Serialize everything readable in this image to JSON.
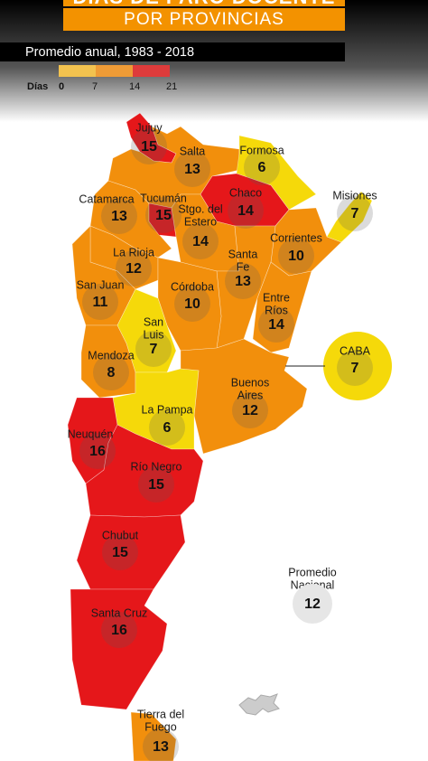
{
  "header": {
    "title": "DÍAS DE PARO DOCENTE",
    "subtitle": "POR PROVINCIAS",
    "period": "Promedio anual, 1983 - 2018"
  },
  "legend": {
    "label": "Días",
    "ticks": [
      0,
      7,
      14,
      21
    ],
    "colors": [
      "#f2c24f",
      "#ee9b36",
      "#dd3b3b"
    ]
  },
  "provinces": [
    {
      "name": [
        "Jujuy"
      ],
      "value": 15,
      "color": "#e5171a"
    },
    {
      "name": [
        "Salta"
      ],
      "value": 13,
      "color": "#f28f0c"
    },
    {
      "name": [
        "Formosa"
      ],
      "value": 6,
      "color": "#f5d90a"
    },
    {
      "name": [
        "Chaco"
      ],
      "value": 14,
      "color": "#e5171a"
    },
    {
      "name": [
        "Misiones"
      ],
      "value": 7,
      "color": "#f5d90a"
    },
    {
      "name": [
        "Catamarca"
      ],
      "value": 13,
      "color": "#f28f0c"
    },
    {
      "name": [
        "Tucumán"
      ],
      "value": 15,
      "color": "#e5171a"
    },
    {
      "name": [
        "Stgo. del",
        "Estero"
      ],
      "value": 14,
      "color": "#f28f0c"
    },
    {
      "name": [
        "Corrientes"
      ],
      "value": 10,
      "color": "#f28f0c"
    },
    {
      "name": [
        "La Rioja"
      ],
      "value": 12,
      "color": "#f28f0c"
    },
    {
      "name": [
        "Santa",
        "Fe"
      ],
      "value": 13,
      "color": "#f28f0c"
    },
    {
      "name": [
        "San Juan"
      ],
      "value": 11,
      "color": "#f28f0c"
    },
    {
      "name": [
        "Córdoba"
      ],
      "value": 10,
      "color": "#f28f0c"
    },
    {
      "name": [
        "Entre",
        "Ríos"
      ],
      "value": 14,
      "color": "#f28f0c"
    },
    {
      "name": [
        "San",
        "Luis"
      ],
      "value": 7,
      "color": "#f5d90a"
    },
    {
      "name": [
        "Mendoza"
      ],
      "value": 8,
      "color": "#f28f0c"
    },
    {
      "name": [
        "CABA"
      ],
      "value": 7,
      "color": "#f5d90a"
    },
    {
      "name": [
        "Buenos",
        "Aires"
      ],
      "value": 12,
      "color": "#f28f0c"
    },
    {
      "name": [
        "La Pampa"
      ],
      "value": 6,
      "color": "#f5d90a"
    },
    {
      "name": [
        "Neuquén"
      ],
      "value": 16,
      "color": "#e5171a"
    },
    {
      "name": [
        "Río Negro"
      ],
      "value": 15,
      "color": "#e5171a"
    },
    {
      "name": [
        "Chubut"
      ],
      "value": 15,
      "color": "#e5171a"
    },
    {
      "name": [
        "Santa Cruz"
      ],
      "value": 16,
      "color": "#e5171a"
    },
    {
      "name": [
        "Tierra del",
        "Fuego"
      ],
      "value": 13,
      "color": "#f28f0c"
    }
  ],
  "national_average": {
    "label": [
      "Promedio",
      "Nacional"
    ],
    "value": 12
  }
}
